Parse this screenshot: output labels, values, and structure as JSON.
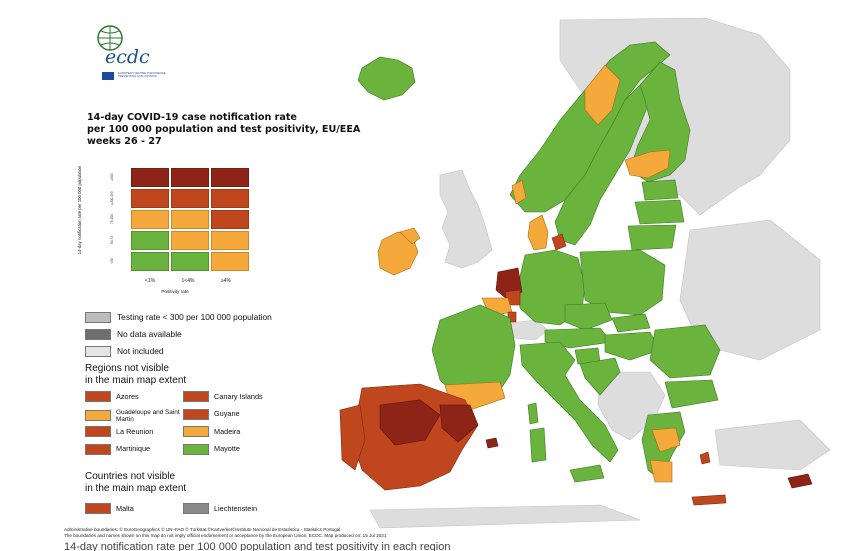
{
  "title_lines": [
    "14-day COVID-19 case notification rate",
    "per 100 000 population and test positivity, EU/EEA",
    "weeks 26 - 27"
  ],
  "logo": {
    "wordmark": "ecdc",
    "subtitle": "EUROPEAN CENTRE FOR DISEASE PREVENTION AND CONTROL"
  },
  "matrix": {
    "y_axis_label": "14-day notification rate per 100 000 population",
    "y_ticks": [
      "≥500",
      "≥200-499",
      "75-200",
      "50-74",
      "<50"
    ],
    "x_ticks": [
      "<1%",
      "1<4%",
      "≥4%"
    ],
    "x_axis_label": "Positivity rate",
    "rows": [
      [
        "#8e2418",
        "#8e2418",
        "#8e2418"
      ],
      [
        "#c0471d",
        "#c0471d",
        "#c0471d"
      ],
      [
        "#f5a93a",
        "#f5a93a",
        "#c0471d"
      ],
      [
        "#6ab33d",
        "#f5a93a",
        "#f5a93a"
      ],
      [
        "#6ab33d",
        "#6ab33d",
        "#f5a93a"
      ]
    ]
  },
  "legend": {
    "testing_rate": "Testing rate < 300 per 100 000 population",
    "no_data": "No data available",
    "not_included": "Not included",
    "colors": {
      "testing": "#bdbdbd",
      "no_data": "#6e6e6e",
      "not_included": "#e5e5e5"
    }
  },
  "regions_heading": [
    "Regions not visible",
    "in the main map extent"
  ],
  "regions": [
    {
      "name": "Azores",
      "color": "#c0471d"
    },
    {
      "name": "Canary Islands",
      "color": "#c0471d"
    },
    {
      "name": "Guadeloupe and Saint Martin",
      "color": "#f5a93a"
    },
    {
      "name": "Guyane",
      "color": "#c0471d"
    },
    {
      "name": "La Reunion",
      "color": "#c0471d"
    },
    {
      "name": "Madeira",
      "color": "#f5a93a"
    },
    {
      "name": "Martinique",
      "color": "#c0471d"
    },
    {
      "name": "Mayotte",
      "color": "#6ab33d"
    }
  ],
  "countries_heading": [
    "Countries not visible",
    "in the main map extent"
  ],
  "countries": [
    {
      "name": "Malta",
      "color": "#c0471d"
    },
    {
      "name": "Liechtenstein",
      "color": "#8a8a8a"
    }
  ],
  "footer_lines": [
    "Administrative boundaries: © EuroGeographics © UN–FAO © Turkstat.©Kartverket©Instituto Nacional de Estatística - Statistics Portugal.",
    "The boundaries and names shown on this map do not imply official endorsement or acceptance by the European Union. ECDC. Map produced on: 15 Jul 2021"
  ],
  "caption_fragment": "14-day notification rate per 100 000 population and test positivity in each region",
  "map_colors": {
    "green": "#6ab33d",
    "orange": "#f5a93a",
    "red": "#c0471d",
    "dark_red": "#8e2418",
    "grey": "#dddddd"
  }
}
